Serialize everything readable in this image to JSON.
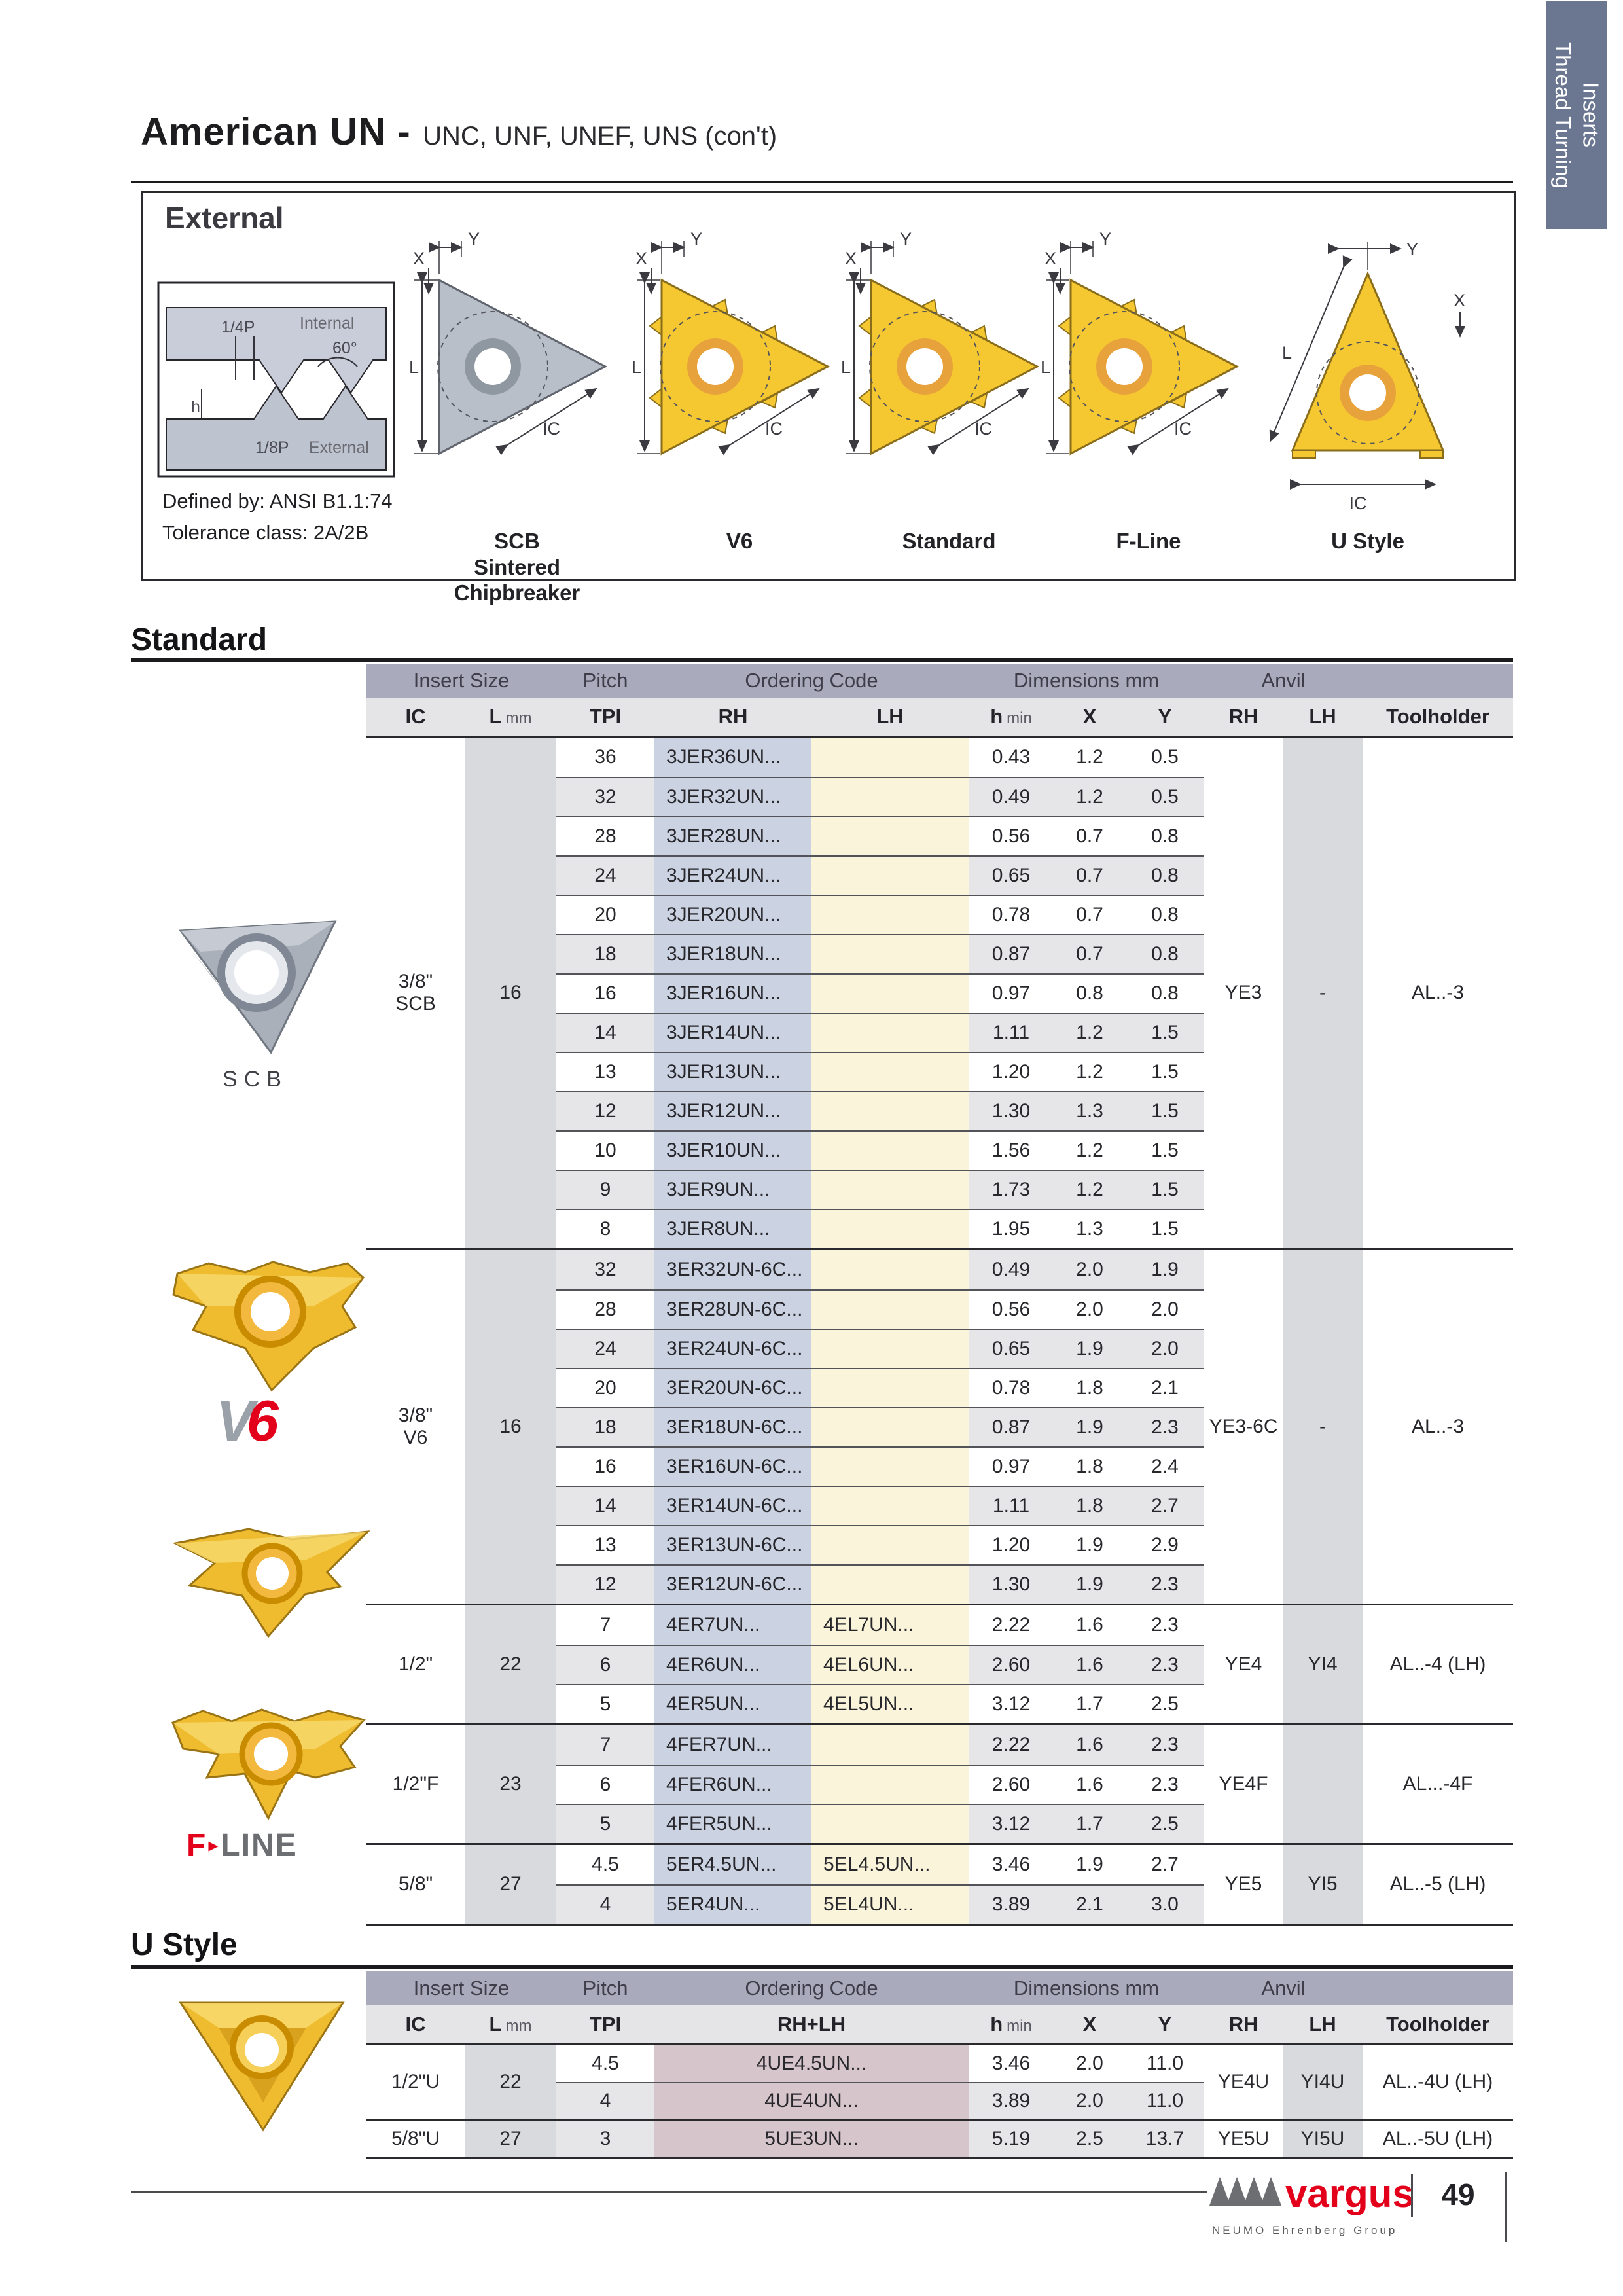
{
  "colors": {
    "accent_red": "#e2001a",
    "tab_bg": "#6b7691",
    "header_band": "#a9abbc",
    "subheader_bg": "#e5e5e8",
    "row_alt": "#e6e6e9",
    "stripe_gray": "#d9dade",
    "stripe_blue": "#cbd2e2",
    "stripe_cream": "#faf5da",
    "stripe_mauve": "#d6c5cb",
    "insert_gold": "#eebc2e",
    "insert_gray": "#aab0ba"
  },
  "tab": {
    "label": "Thread Turning Inserts"
  },
  "title": {
    "main": "American UN -",
    "sub": "UNC, UNF, UNEF, UNS (con't)"
  },
  "external": {
    "label": "External",
    "profile": {
      "quarter": "1/4P",
      "internal": "Internal",
      "angle": "60°",
      "h": "h",
      "eighth": "1/8P",
      "external": "External"
    },
    "defined_line1": "Defined by: ANSI B1.1:74",
    "defined_line2": "Tolerance class: 2A/2B",
    "dim_labels": {
      "l": "L",
      "x": "X",
      "y": "Y",
      "ic": "IC"
    },
    "figures": [
      {
        "icon": "scb-insert-diagram",
        "caption": "SCB\nSintered\nChipbreaker"
      },
      {
        "icon": "v6-insert-diagram",
        "caption": "V6"
      },
      {
        "icon": "standard-insert-diagram",
        "caption": "Standard"
      },
      {
        "icon": "fline-insert-diagram",
        "caption": "F-Line"
      },
      {
        "icon": "ustyle-insert-diagram",
        "caption": "U Style"
      }
    ]
  },
  "side": {
    "scb_photo_label": "SCB",
    "v6_logo_v": "V",
    "v6_logo_6": "6",
    "fline_logo_f": "F",
    "fline_logo_line": "LINE"
  },
  "standard": {
    "heading": "Standard",
    "band": [
      "Insert Size",
      "Pitch",
      "Ordering Code",
      "Dimensions mm",
      "Anvil",
      ""
    ],
    "subheaders": [
      "IC",
      "L mm",
      "TPI",
      "RH",
      "LH",
      "h min",
      "X",
      "Y",
      "RH",
      "LH",
      "Toolholder"
    ],
    "groups": [
      {
        "ic": "3/8\"\nSCB",
        "l": "16",
        "anvil_rh": "YE3",
        "anvil_lh": "-",
        "toolholder": "AL..-3",
        "rows": [
          {
            "tpi": "36",
            "rh": "3JER36UN...",
            "lh": "",
            "h": "0.43",
            "x": "1.2",
            "y": "0.5",
            "shaded": false
          },
          {
            "tpi": "32",
            "rh": "3JER32UN...",
            "lh": "",
            "h": "0.49",
            "x": "1.2",
            "y": "0.5",
            "shaded": true
          },
          {
            "tpi": "28",
            "rh": "3JER28UN...",
            "lh": "",
            "h": "0.56",
            "x": "0.7",
            "y": "0.8",
            "shaded": false
          },
          {
            "tpi": "24",
            "rh": "3JER24UN...",
            "lh": "",
            "h": "0.65",
            "x": "0.7",
            "y": "0.8",
            "shaded": true
          },
          {
            "tpi": "20",
            "rh": "3JER20UN...",
            "lh": "",
            "h": "0.78",
            "x": "0.7",
            "y": "0.8",
            "shaded": false
          },
          {
            "tpi": "18",
            "rh": "3JER18UN...",
            "lh": "",
            "h": "0.87",
            "x": "0.7",
            "y": "0.8",
            "shaded": true
          },
          {
            "tpi": "16",
            "rh": "3JER16UN...",
            "lh": "",
            "h": "0.97",
            "x": "0.8",
            "y": "0.8",
            "shaded": false
          },
          {
            "tpi": "14",
            "rh": "3JER14UN...",
            "lh": "",
            "h": "1.11",
            "x": "1.2",
            "y": "1.5",
            "shaded": true
          },
          {
            "tpi": "13",
            "rh": "3JER13UN...",
            "lh": "",
            "h": "1.20",
            "x": "1.2",
            "y": "1.5",
            "shaded": false
          },
          {
            "tpi": "12",
            "rh": "3JER12UN...",
            "lh": "",
            "h": "1.30",
            "x": "1.3",
            "y": "1.5",
            "shaded": true
          },
          {
            "tpi": "10",
            "rh": "3JER10UN...",
            "lh": "",
            "h": "1.56",
            "x": "1.2",
            "y": "1.5",
            "shaded": false
          },
          {
            "tpi": "9",
            "rh": "3JER9UN...",
            "lh": "",
            "h": "1.73",
            "x": "1.2",
            "y": "1.5",
            "shaded": true
          },
          {
            "tpi": "8",
            "rh": "3JER8UN...",
            "lh": "",
            "h": "1.95",
            "x": "1.3",
            "y": "1.5",
            "shaded": false
          }
        ]
      },
      {
        "ic": "3/8\"\nV6",
        "l": "16",
        "anvil_rh": "YE3-6C",
        "anvil_lh": "-",
        "toolholder": "AL..-3",
        "rows": [
          {
            "tpi": "32",
            "rh": "3ER32UN-6C...",
            "lh": "",
            "h": "0.49",
            "x": "2.0",
            "y": "1.9",
            "shaded": true
          },
          {
            "tpi": "28",
            "rh": "3ER28UN-6C...",
            "lh": "",
            "h": "0.56",
            "x": "2.0",
            "y": "2.0",
            "shaded": false
          },
          {
            "tpi": "24",
            "rh": "3ER24UN-6C...",
            "lh": "",
            "h": "0.65",
            "x": "1.9",
            "y": "2.0",
            "shaded": true
          },
          {
            "tpi": "20",
            "rh": "3ER20UN-6C...",
            "lh": "",
            "h": "0.78",
            "x": "1.8",
            "y": "2.1",
            "shaded": false
          },
          {
            "tpi": "18",
            "rh": "3ER18UN-6C...",
            "lh": "",
            "h": "0.87",
            "x": "1.9",
            "y": "2.3",
            "shaded": true
          },
          {
            "tpi": "16",
            "rh": "3ER16UN-6C...",
            "lh": "",
            "h": "0.97",
            "x": "1.8",
            "y": "2.4",
            "shaded": false
          },
          {
            "tpi": "14",
            "rh": "3ER14UN-6C...",
            "lh": "",
            "h": "1.11",
            "x": "1.8",
            "y": "2.7",
            "shaded": true
          },
          {
            "tpi": "13",
            "rh": "3ER13UN-6C...",
            "lh": "",
            "h": "1.20",
            "x": "1.9",
            "y": "2.9",
            "shaded": false
          },
          {
            "tpi": "12",
            "rh": "3ER12UN-6C...",
            "lh": "",
            "h": "1.30",
            "x": "1.9",
            "y": "2.3",
            "shaded": true
          }
        ]
      },
      {
        "ic": "1/2\"",
        "l": "22",
        "anvil_rh": "YE4",
        "anvil_lh": "YI4",
        "toolholder": "AL..-4 (LH)",
        "rows": [
          {
            "tpi": "7",
            "rh": "4ER7UN...",
            "lh": "4EL7UN...",
            "h": "2.22",
            "x": "1.6",
            "y": "2.3",
            "shaded": false
          },
          {
            "tpi": "6",
            "rh": "4ER6UN...",
            "lh": "4EL6UN...",
            "h": "2.60",
            "x": "1.6",
            "y": "2.3",
            "shaded": true
          },
          {
            "tpi": "5",
            "rh": "4ER5UN...",
            "lh": "4EL5UN...",
            "h": "3.12",
            "x": "1.7",
            "y": "2.5",
            "shaded": false
          }
        ]
      },
      {
        "ic": "1/2\"F",
        "l": "23",
        "anvil_rh": "YE4F",
        "anvil_lh": "",
        "toolholder": "AL...-4F",
        "rows": [
          {
            "tpi": "7",
            "rh": "4FER7UN...",
            "lh": "",
            "h": "2.22",
            "x": "1.6",
            "y": "2.3",
            "shaded": true
          },
          {
            "tpi": "6",
            "rh": "4FER6UN...",
            "lh": "",
            "h": "2.60",
            "x": "1.6",
            "y": "2.3",
            "shaded": false
          },
          {
            "tpi": "5",
            "rh": "4FER5UN...",
            "lh": "",
            "h": "3.12",
            "x": "1.7",
            "y": "2.5",
            "shaded": true
          }
        ]
      },
      {
        "ic": "5/8\"",
        "l": "27",
        "anvil_rh": "YE5",
        "anvil_lh": "YI5",
        "toolholder": "AL..-5 (LH)",
        "rows": [
          {
            "tpi": "4.5",
            "rh": "5ER4.5UN...",
            "lh": "5EL4.5UN...",
            "h": "3.46",
            "x": "1.9",
            "y": "2.7",
            "shaded": false
          },
          {
            "tpi": "4",
            "rh": "5ER4UN...",
            "lh": "5EL4UN...",
            "h": "3.89",
            "x": "2.1",
            "y": "3.0",
            "shaded": true
          }
        ]
      }
    ]
  },
  "ustyle": {
    "heading": "U Style",
    "band": [
      "Insert Size",
      "Pitch",
      "Ordering Code",
      "Dimensions mm",
      "Anvil",
      ""
    ],
    "subheaders": [
      "IC",
      "L mm",
      "TPI",
      "RH+LH",
      "h min",
      "X",
      "Y",
      "RH",
      "LH",
      "Toolholder"
    ],
    "groups": [
      {
        "ic": "1/2\"U",
        "l": "22",
        "anvil_rh": "YE4U",
        "anvil_lh": "YI4U",
        "toolholder": "AL..-4U (LH)",
        "rows": [
          {
            "tpi": "4.5",
            "code": "4UE4.5UN...",
            "h": "3.46",
            "x": "2.0",
            "y": "11.0",
            "shaded": false
          },
          {
            "tpi": "4",
            "code": "4UE4UN...",
            "h": "3.89",
            "x": "2.0",
            "y": "11.0",
            "shaded": true
          }
        ]
      },
      {
        "ic": "5/8\"U",
        "l": "27",
        "anvil_rh": "YE5U",
        "anvil_lh": "YI5U",
        "toolholder": "AL..-5U (LH)",
        "rows": [
          {
            "tpi": "3",
            "code": "5UE3UN...",
            "h": "5.19",
            "x": "2.5",
            "y": "13.7",
            "shaded": true
          }
        ]
      }
    ]
  },
  "footer": {
    "brand": "vargus",
    "brand_sub": "NEUMO Ehrenberg Group",
    "page_number": "49"
  }
}
